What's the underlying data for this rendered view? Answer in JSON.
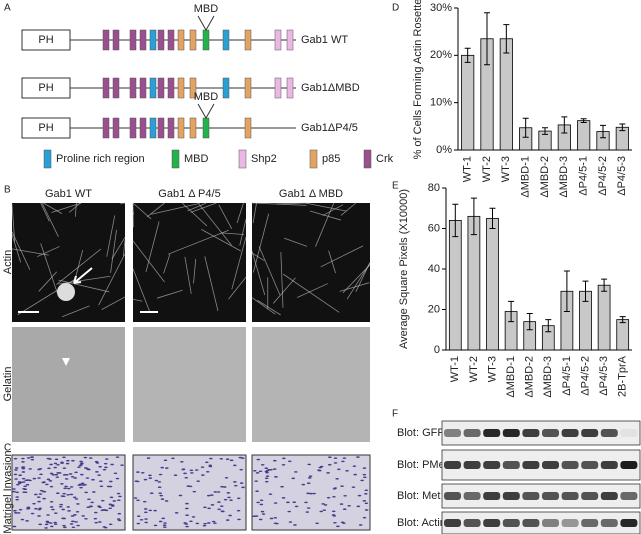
{
  "panels": {
    "a": {
      "label": "A",
      "constructs": [
        {
          "domain": "PH",
          "mbd": "MBD",
          "name": "Gab1 WT"
        },
        {
          "domain": "PH",
          "name": "Gab1ΔMBD"
        },
        {
          "domain": "PH",
          "mbd": "MBD",
          "name": "Gab1ΔP4/5"
        }
      ],
      "legend": [
        "Proline rich region",
        "MBD",
        "Shp2",
        "p85",
        "Crk"
      ]
    },
    "b": {
      "label": "B",
      "columns": [
        "Gab1 WT",
        "Gab1 Δ P4/5",
        "Gab1 Δ MBD"
      ],
      "rows": [
        "Actin",
        "Gelatin"
      ]
    },
    "c": {
      "label": "C",
      "row": "Matrigel Invasion"
    },
    "d": {
      "label": "D"
    },
    "e": {
      "label": "E"
    },
    "f": {
      "label": "F",
      "blots": [
        "Blot: GFP",
        "Blot: PMet",
        "Blot: Met",
        "Blot: Actin"
      ]
    }
  },
  "chart_data": [
    {
      "type": "bar",
      "y_label": "% of Cells Forming Actin Rosette",
      "color": "#c8c8c8",
      "categories": [
        "WT-1",
        "WT-2",
        "WT-3",
        "ΔMBD-1",
        "ΔMBD-2",
        "ΔMBD-3",
        "ΔP4/5-1",
        "ΔP4/5-2",
        "ΔP4/5-3"
      ],
      "values": [
        20,
        23.5,
        23.5,
        4.7,
        4,
        5.3,
        6.2,
        3.9,
        4.8
      ],
      "errors": [
        1.5,
        5.5,
        3,
        2,
        0.7,
        1.7,
        0.4,
        1.3,
        0.7
      ],
      "ylim": [
        0,
        30
      ],
      "yticks": [
        {
          "value": 0,
          "label": "0%"
        },
        {
          "value": 10,
          "label": "10%"
        },
        {
          "value": 20,
          "label": "20%"
        },
        {
          "value": 30,
          "label": "30%"
        }
      ]
    },
    {
      "type": "bar",
      "y_label": "Average Square Pixels (X10000)",
      "color": "#c8c8c8",
      "categories": [
        "WT-1",
        "WT-2",
        "WT-3",
        "ΔMBD-1",
        "ΔMBD-2",
        "ΔMBD-3",
        "ΔP4/5-1",
        "ΔP4/5-2",
        "ΔP4/5-3",
        "2B-TprA"
      ],
      "values": [
        64,
        66,
        65,
        19,
        14,
        12,
        29,
        29,
        32,
        15
      ],
      "errors": [
        8,
        9,
        5,
        5,
        4,
        3,
        10,
        5,
        3,
        1.5
      ],
      "ylim": [
        0,
        80
      ],
      "yticks": [
        0,
        20,
        40,
        60,
        80
      ]
    }
  ]
}
